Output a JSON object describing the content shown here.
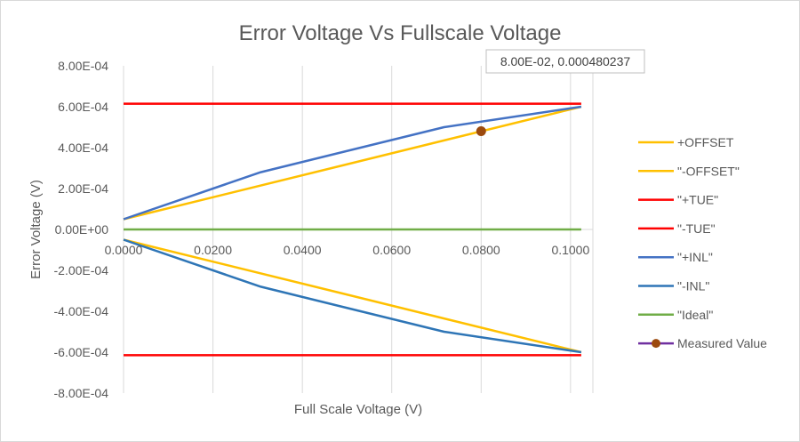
{
  "chart_data": {
    "type": "line",
    "title": "Error Voltage Vs Fullscale Voltage",
    "xlabel": "Full Scale Voltage (V)",
    "ylabel": "Error Voltage (V)",
    "xlim": [
      0,
      0.105
    ],
    "ylim": [
      -0.0008,
      0.0008
    ],
    "x_ticks": [
      0,
      0.02,
      0.04,
      0.06,
      0.08,
      0.1
    ],
    "x_tick_labels": [
      "0.0000",
      "0.0200",
      "0.0400",
      "0.0600",
      "0.0800",
      "0.1000"
    ],
    "y_ticks": [
      0.0008,
      0.0006,
      0.0004,
      0.0002,
      0,
      -0.0002,
      -0.0004,
      -0.0006,
      -0.0008
    ],
    "y_tick_labels": [
      "8.00E-04",
      "6.00E-04",
      "4.00E-04",
      "2.00E-04",
      "0.00E+00",
      "-2.00E-04",
      "-4.00E-04",
      "-6.00E-04",
      "-8.00E-04"
    ],
    "grid": "vertical",
    "legend_position": "right",
    "series": [
      {
        "name": "+OFFSET",
        "color": "#ffc000",
        "x": [
          0,
          0.1024
        ],
        "y": [
          5e-05,
          0.0006
        ]
      },
      {
        "name": "\"-OFFSET\"",
        "color": "#ffc000",
        "x": [
          0,
          0.1024
        ],
        "y": [
          -5e-05,
          -0.0006
        ]
      },
      {
        "name": "\"+TUE\"",
        "color": "#ff0000",
        "x": [
          0,
          0.1024
        ],
        "y": [
          0.000615,
          0.000615
        ]
      },
      {
        "name": "\"-TUE\"",
        "color": "#ff0000",
        "x": [
          0,
          0.1024
        ],
        "y": [
          -0.000615,
          -0.000615
        ]
      },
      {
        "name": "\"+INL\"",
        "color": "#4472c4",
        "x": [
          0,
          0.0307,
          0.0717,
          0.1024
        ],
        "y": [
          5e-05,
          0.00028,
          0.0005,
          0.0006
        ]
      },
      {
        "name": "\"-INL\"",
        "color": "#2e75b6",
        "x": [
          0,
          0.0307,
          0.0717,
          0.1024
        ],
        "y": [
          -5e-05,
          -0.00028,
          -0.0005,
          -0.0006
        ]
      },
      {
        "name": "\"Ideal\"",
        "color": "#70ad47",
        "x": [
          0,
          0.1024
        ],
        "y": [
          0,
          0
        ]
      },
      {
        "name": "Measured Value",
        "color": "#7030a0",
        "marker_color": "#9c4a0e",
        "x": [
          0.08
        ],
        "y": [
          0.000480237
        ]
      }
    ],
    "annotation": {
      "text": "8.00E-02, 0.000480237",
      "x": 0.08,
      "y": 0.000480237
    }
  }
}
